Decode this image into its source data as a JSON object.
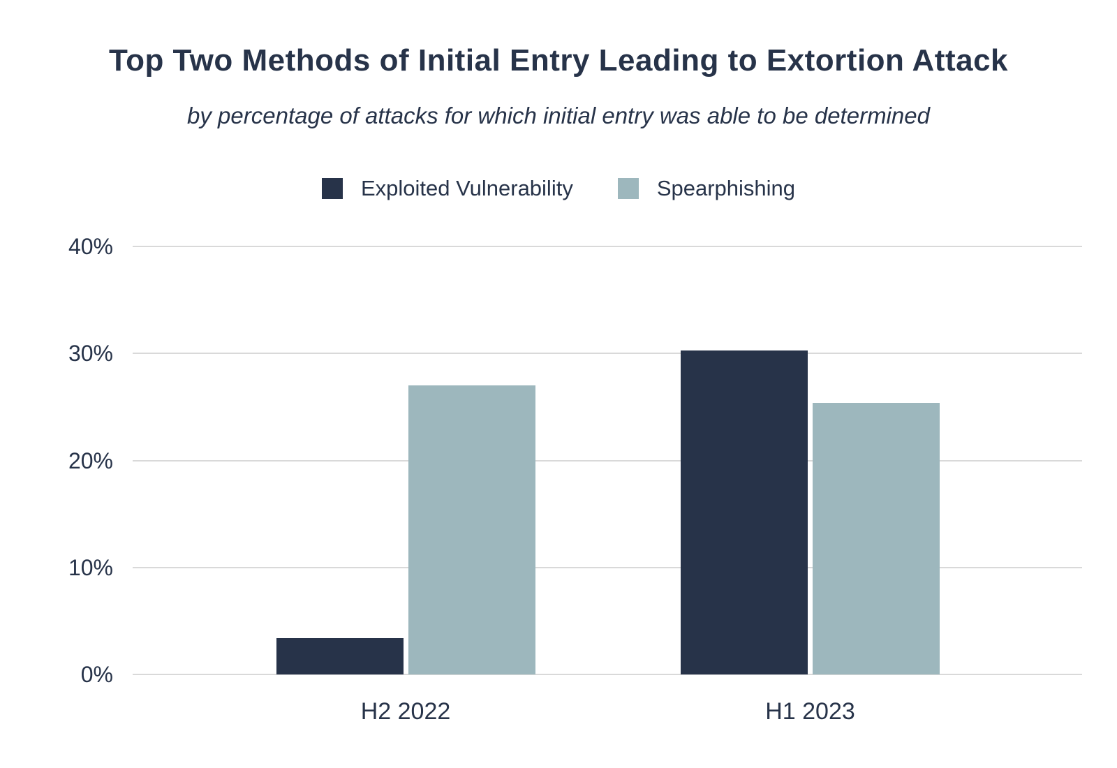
{
  "header": {
    "title": "Top Two Methods of Initial Entry Leading to Extortion Attack",
    "subtitle": "by percentage of attacks for which initial entry was able to be determined"
  },
  "colors": {
    "text": "#273349",
    "navy": "#273349",
    "steel_blue": "#9db7bd",
    "gridline": "#d9d9d9",
    "background": "#ffffff"
  },
  "chart_data": {
    "type": "bar",
    "title": "Top Two Methods of Initial Entry Leading to Extortion Attack",
    "subtitle": "by percentage of attacks for which initial entry was able to be determined",
    "categories": [
      "H2 2022",
      "H1 2023"
    ],
    "series": [
      {
        "name": "Exploited Vulnerability",
        "color": "#273349",
        "values": [
          3.4,
          30.3
        ]
      },
      {
        "name": "Spearphishing",
        "color": "#9db7bd",
        "values": [
          27.0,
          25.4
        ]
      }
    ],
    "xlabel": "",
    "ylabel": "",
    "y_axis": {
      "min": 0,
      "max": 40,
      "tick_step": 10,
      "tick_labels": [
        "0%",
        "10%",
        "20%",
        "30%",
        "40%"
      ],
      "tick_suffix": "%"
    },
    "grid": "horizontal",
    "gridline_color": "#d9d9d9",
    "legend_position": "top-center"
  }
}
